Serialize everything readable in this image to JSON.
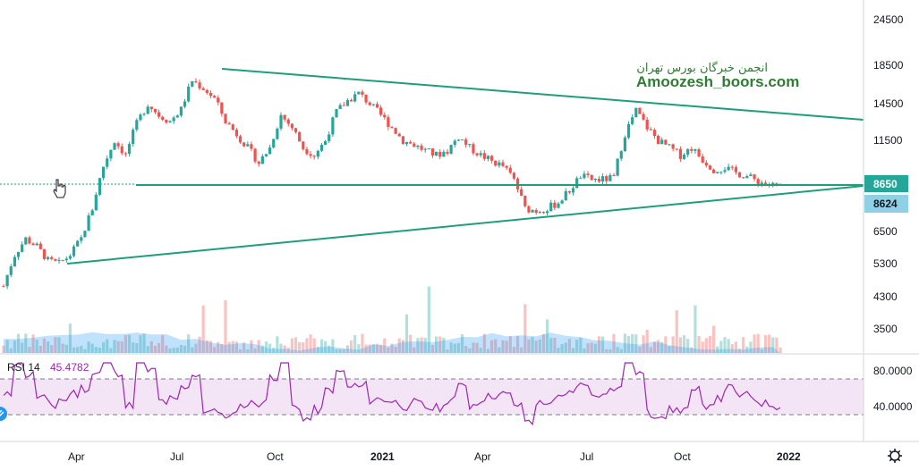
{
  "chart_data": [
    {
      "type": "candlestick",
      "y_scale": "log",
      "y_ticks": [
        "24500",
        "18500",
        "14500",
        "11500",
        "8650",
        "8624",
        "6500",
        "5300",
        "4300",
        "3500"
      ],
      "x_ticks": [
        "Apr",
        "Jul",
        "Oct",
        "2021",
        "Apr",
        "Jul",
        "Oct",
        "2022"
      ],
      "last_price_label": "8650",
      "level_label": "8624",
      "watermark_fa": "انجمن خبرگان بورس تهران",
      "watermark_en": "Amoozesh_boors.com",
      "series_close": [
        4600,
        5600,
        6200,
        5900,
        5400,
        5300,
        5600,
        6200,
        7500,
        9800,
        11500,
        10500,
        12800,
        14500,
        13500,
        13000,
        14000,
        16800,
        16000,
        15000,
        13000,
        12000,
        11000,
        10000,
        11000,
        13500,
        12500,
        11000,
        10500,
        11500,
        13800,
        14800,
        15500,
        14500,
        13500,
        12500,
        11500,
        11200,
        10800,
        10500,
        10800,
        11800,
        11000,
        10500,
        10100,
        9800,
        9000,
        7500,
        7400,
        7500,
        7800,
        8400,
        9200,
        9000,
        9000,
        9100,
        12000,
        13900,
        12500,
        11500,
        11000,
        10500,
        11000,
        10200,
        9600,
        9700,
        9400,
        9200,
        8900,
        8700,
        8650
      ],
      "trendlines": [
        {
          "from": [
            "2020-08",
            18000
          ],
          "to": [
            "2022-01",
            13100
          ],
          "label": ""
        },
        {
          "from": [
            "2020-03",
            5250
          ],
          "to": [
            "2022-01",
            8650
          ],
          "label": ""
        },
        {
          "horizontal": 8624,
          "label": ""
        }
      ]
    },
    {
      "type": "line",
      "title": "RSI 14",
      "value": "45.4782",
      "y_ticks": [
        "80.0000",
        "40.0000"
      ],
      "band": [
        70,
        30
      ]
    }
  ]
}
